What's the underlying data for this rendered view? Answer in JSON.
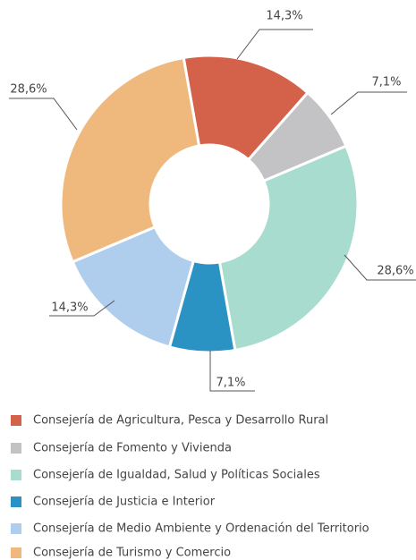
{
  "chart_data": {
    "type": "pie",
    "donut": true,
    "categories": [
      "Consejería de Agricultura, Pesca y Desarrollo Rural",
      "Consejería de Fomento y Vivienda",
      "Consejería de Igualdad, Salud y Políticas Sociales",
      "Consejería de Justicia e Interior",
      "Consejería de Medio Ambiente y Ordenación del Territorio",
      "Consejería de Turismo y Comercio"
    ],
    "values": [
      14.3,
      7.1,
      28.6,
      7.1,
      14.3,
      28.6
    ],
    "value_labels": [
      "14,3%",
      "7,1%",
      "28,6%",
      "7,1%",
      "14,3%",
      "28,6%"
    ],
    "colors": [
      "#d4614a",
      "#c3c3c5",
      "#a8dccf",
      "#2b93c4",
      "#afcdec",
      "#efb97d"
    ],
    "legend": "bottom"
  }
}
